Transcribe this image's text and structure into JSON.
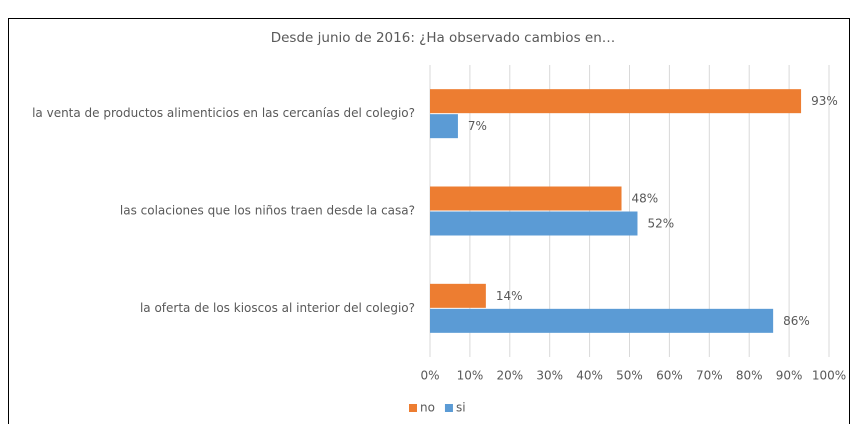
{
  "chart_data": {
    "type": "bar",
    "orientation": "horizontal",
    "title": "Desde junio de 2016: ¿Ha observado cambios en…",
    "categories": [
      "la venta de productos alimenticios en las cercanías del colegio?",
      "las colaciones que los niños traen desde la casa?",
      "la oferta de los kioscos al interior del colegio?"
    ],
    "series": [
      {
        "name": "no",
        "color": "#ed7d31",
        "values": [
          93,
          48,
          14
        ],
        "value_labels": [
          "93%",
          "48%",
          "14%"
        ]
      },
      {
        "name": "si",
        "color": "#5b9bd5",
        "values": [
          7,
          52,
          86
        ],
        "value_labels": [
          "7%",
          "52%",
          "86%"
        ]
      }
    ],
    "xlim": [
      0,
      100
    ],
    "xticks": [
      {
        "value": 0,
        "label": "0%"
      },
      {
        "value": 10,
        "label": "10%"
      },
      {
        "value": 20,
        "label": "20%"
      },
      {
        "value": 30,
        "label": "30%"
      },
      {
        "value": 40,
        "label": "40%"
      },
      {
        "value": 50,
        "label": "50%"
      },
      {
        "value": 60,
        "label": "60%"
      },
      {
        "value": 70,
        "label": "70%"
      },
      {
        "value": 80,
        "label": "80%"
      },
      {
        "value": 90,
        "label": "90%"
      },
      {
        "value": 100,
        "label": "100%"
      }
    ],
    "grid": true,
    "legend": "bottom"
  }
}
